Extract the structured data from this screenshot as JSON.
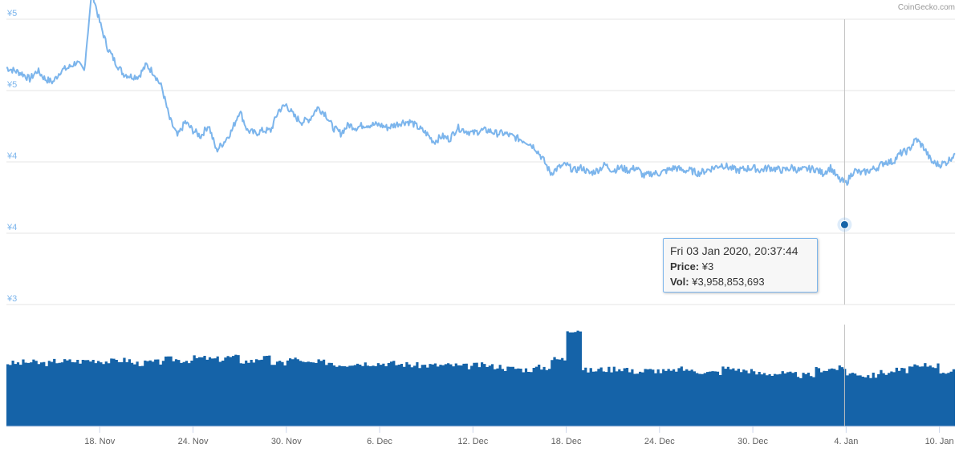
{
  "credit": "CoinGecko.com",
  "colors": {
    "price_line": "#7cb5ec",
    "volume": "#1563a8",
    "grid": "#e6e6e6"
  },
  "tooltip": {
    "date": "Fri 03 Jan 2020, 20:37:44",
    "price_label": "Price:",
    "price_value": "¥3",
    "vol_label": "Vol:",
    "vol_value": "¥3,958,853,693"
  },
  "chart_data": {
    "type": "line",
    "y_tick_labels": [
      "¥5",
      "¥5",
      "¥4",
      "¥4",
      "¥3"
    ],
    "x_tick_labels": [
      "18. Nov",
      "24. Nov",
      "30. Nov",
      "6. Dec",
      "12. Dec",
      "18. Dec",
      "24. Dec",
      "30. Dec",
      "4. Jan",
      "10. Jan"
    ],
    "ylim": [
      3.0,
      5.0
    ],
    "x_range_days": [
      0,
      61
    ],
    "x_tick_days": [
      6,
      12,
      18,
      24,
      30,
      36,
      42,
      48,
      54,
      60
    ],
    "crosshair_day": 53.9,
    "series": [
      {
        "type": "line",
        "x": [
          0,
          0.5,
          1,
          1.5,
          2,
          2.5,
          3,
          3.5,
          4,
          4.5,
          5,
          5.5,
          6,
          6.5,
          7,
          7.5,
          8,
          8.5,
          9,
          9.5,
          10,
          10.5,
          11,
          11.5,
          12,
          12.5,
          13,
          13.5,
          14,
          14.5,
          15,
          15.5,
          16,
          16.5,
          17,
          17.5,
          18,
          18.5,
          19,
          19.5,
          20,
          20.5,
          21,
          21.5,
          22,
          22.5,
          23,
          23.5,
          24,
          24.5,
          25,
          25.5,
          26,
          26.5,
          27,
          27.5,
          28,
          28.5,
          29,
          29.5,
          30,
          30.5,
          31,
          31.5,
          32,
          32.5,
          33,
          33.5,
          34,
          34.5,
          35,
          35.5,
          36,
          36.5,
          37,
          37.5,
          38,
          38.5,
          39,
          39.5,
          40,
          40.5,
          41,
          41.5,
          42,
          42.5,
          43,
          43.5,
          44,
          44.5,
          45,
          45.5,
          46,
          46.5,
          47,
          47.5,
          48,
          48.5,
          49,
          49.5,
          50,
          50.5,
          51,
          51.5,
          52,
          52.5,
          53,
          53.5,
          54,
          54.5,
          55,
          55.5,
          56,
          56.5,
          57,
          57.5,
          58,
          58.5,
          59,
          59.5,
          60,
          60.5,
          61
        ],
        "values": [
          4.66,
          4.64,
          4.62,
          4.58,
          4.64,
          4.58,
          4.56,
          4.64,
          4.66,
          4.7,
          4.64,
          5.2,
          4.98,
          4.8,
          4.7,
          4.62,
          4.6,
          4.6,
          4.68,
          4.62,
          4.52,
          4.3,
          4.18,
          4.28,
          4.22,
          4.18,
          4.26,
          4.08,
          4.14,
          4.22,
          4.36,
          4.22,
          4.2,
          4.22,
          4.22,
          4.36,
          4.4,
          4.32,
          4.28,
          4.3,
          4.38,
          4.34,
          4.24,
          4.2,
          4.26,
          4.24,
          4.26,
          4.26,
          4.26,
          4.24,
          4.26,
          4.28,
          4.28,
          4.24,
          4.2,
          4.14,
          4.18,
          4.16,
          4.24,
          4.22,
          4.2,
          4.22,
          4.22,
          4.2,
          4.2,
          4.18,
          4.16,
          4.14,
          4.1,
          4.02,
          3.92,
          3.96,
          3.98,
          3.94,
          3.96,
          3.92,
          3.94,
          3.98,
          3.94,
          3.96,
          3.94,
          3.96,
          3.9,
          3.92,
          3.92,
          3.94,
          3.96,
          3.94,
          3.94,
          3.92,
          3.94,
          3.96,
          3.98,
          3.96,
          3.94,
          3.95,
          3.96,
          3.94,
          3.96,
          3.95,
          3.94,
          3.96,
          3.94,
          3.95,
          3.95,
          3.92,
          3.96,
          3.88,
          3.85,
          3.94,
          3.92,
          3.94,
          3.96,
          4.0,
          4.0,
          4.06,
          4.08,
          4.16,
          4.1,
          4.0,
          3.98,
          4.0,
          4.06
        ]
      },
      {
        "type": "bar",
        "name": "",
        "x": [
          0,
          1,
          2,
          3,
          4,
          5,
          6,
          7,
          8,
          9,
          10,
          11,
          12,
          13,
          14,
          15,
          16,
          17,
          18,
          19,
          20,
          21,
          22,
          23,
          24,
          25,
          26,
          27,
          28,
          29,
          30,
          31,
          32,
          33,
          34,
          35,
          36,
          37,
          38,
          39,
          40,
          41,
          42,
          43,
          44,
          45,
          46,
          47,
          48,
          49,
          50,
          51,
          52,
          53,
          54,
          55,
          56,
          57,
          58,
          59,
          60,
          61
        ],
        "values": [
          0.62,
          0.63,
          0.62,
          0.64,
          0.64,
          0.65,
          0.64,
          0.65,
          0.62,
          0.63,
          0.66,
          0.65,
          0.67,
          0.66,
          0.68,
          0.64,
          0.67,
          0.62,
          0.66,
          0.62,
          0.63,
          0.61,
          0.62,
          0.62,
          0.62,
          0.61,
          0.6,
          0.6,
          0.6,
          0.59,
          0.6,
          0.59,
          0.57,
          0.56,
          0.58,
          0.66,
          0.95,
          0.55,
          0.56,
          0.57,
          0.54,
          0.55,
          0.54,
          0.56,
          0.54,
          0.53,
          0.57,
          0.55,
          0.52,
          0.52,
          0.51,
          0.5,
          0.56,
          0.57,
          0.52,
          0.5,
          0.53,
          0.55,
          0.58,
          0.6,
          0.54,
          0.55
        ]
      }
    ]
  }
}
